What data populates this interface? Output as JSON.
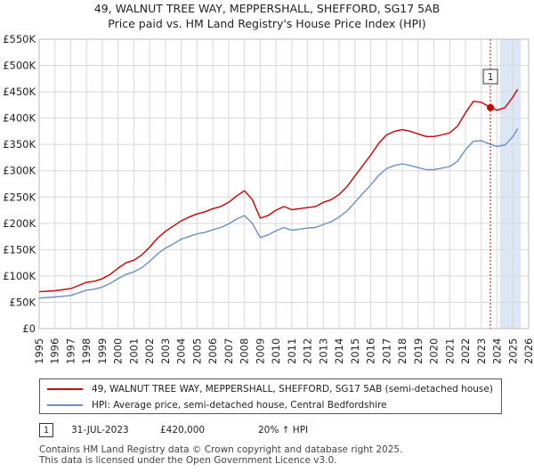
{
  "chart_data": {
    "type": "line",
    "title": "49, WALNUT TREE WAY, MEPPERSHALL, SHEFFORD, SG17 5AB",
    "subtitle": "Price paid vs. HM Land Registry's House Price Index (HPI)",
    "xlim": [
      1995,
      2026
    ],
    "ylim": [
      0,
      550000
    ],
    "x_ticks": [
      "1995",
      "1996",
      "1997",
      "1998",
      "1999",
      "2000",
      "2001",
      "2002",
      "2003",
      "2004",
      "2005",
      "2006",
      "2007",
      "2008",
      "2009",
      "2010",
      "2011",
      "2012",
      "2013",
      "2014",
      "2015",
      "2016",
      "2017",
      "2018",
      "2019",
      "2020",
      "2021",
      "2022",
      "2023",
      "2024",
      "2025",
      "2026"
    ],
    "y_ticks": [
      {
        "value": 0,
        "label": "£0"
      },
      {
        "value": 50000,
        "label": "£50K"
      },
      {
        "value": 100000,
        "label": "£100K"
      },
      {
        "value": 150000,
        "label": "£150K"
      },
      {
        "value": 200000,
        "label": "£200K"
      },
      {
        "value": 250000,
        "label": "£250K"
      },
      {
        "value": 300000,
        "label": "£300K"
      },
      {
        "value": 350000,
        "label": "£350K"
      },
      {
        "value": 400000,
        "label": "£400K"
      },
      {
        "value": 450000,
        "label": "£450K"
      },
      {
        "value": 500000,
        "label": "£500K"
      },
      {
        "value": 550000,
        "label": "£550K"
      }
    ],
    "grid": true,
    "series": [
      {
        "name": "49, WALNUT TREE WAY, MEPPERSHALL, SHEFFORD, SG17 5AB (semi-detached house)",
        "color": "#cc0000",
        "x": [
          1995,
          1996,
          1997,
          1997.5,
          1998,
          1998.5,
          1999,
          1999.5,
          2000,
          2000.5,
          2001,
          2001.5,
          2002,
          2002.5,
          2003,
          2003.5,
          2004,
          2004.5,
          2005,
          2005.5,
          2006,
          2006.5,
          2007,
          2007.5,
          2008,
          2008.5,
          2009,
          2009.5,
          2010,
          2010.5,
          2011,
          2011.5,
          2012,
          2012.5,
          2013,
          2013.5,
          2014,
          2014.5,
          2015,
          2015.5,
          2016,
          2016.5,
          2017,
          2017.5,
          2018,
          2018.5,
          2019,
          2019.5,
          2020,
          2020.5,
          2021,
          2021.5,
          2022,
          2022.5,
          2023,
          2023.58,
          2024,
          2024.5,
          2025,
          2025.3
        ],
        "values": [
          70000,
          72000,
          76000,
          82000,
          88000,
          90000,
          95000,
          103000,
          115000,
          125000,
          130000,
          140000,
          155000,
          172000,
          185000,
          195000,
          205000,
          212000,
          218000,
          222000,
          228000,
          232000,
          240000,
          252000,
          262000,
          245000,
          210000,
          215000,
          225000,
          232000,
          226000,
          228000,
          230000,
          232000,
          240000,
          245000,
          255000,
          270000,
          290000,
          310000,
          330000,
          352000,
          368000,
          375000,
          378000,
          375000,
          370000,
          365000,
          365000,
          368000,
          372000,
          385000,
          410000,
          432000,
          430000,
          420000,
          415000,
          420000,
          440000,
          455000
        ]
      },
      {
        "name": "HPI: Average price, semi-detached house, Central Bedfordshire",
        "color": "#6a8fc8",
        "x": [
          1995,
          1996,
          1997,
          1997.5,
          1998,
          1998.5,
          1999,
          1999.5,
          2000,
          2000.5,
          2001,
          2001.5,
          2002,
          2002.5,
          2003,
          2003.5,
          2004,
          2004.5,
          2005,
          2005.5,
          2006,
          2006.5,
          2007,
          2007.5,
          2008,
          2008.5,
          2009,
          2009.5,
          2010,
          2010.5,
          2011,
          2011.5,
          2012,
          2012.5,
          2013,
          2013.5,
          2014,
          2014.5,
          2015,
          2015.5,
          2016,
          2016.5,
          2017,
          2017.5,
          2018,
          2018.5,
          2019,
          2019.5,
          2020,
          2020.5,
          2021,
          2021.5,
          2022,
          2022.5,
          2023,
          2023.58,
          2024,
          2024.5,
          2025,
          2025.3
        ],
        "values": [
          58000,
          60000,
          63000,
          68000,
          73000,
          75000,
          79000,
          86000,
          95000,
          103000,
          108000,
          116000,
          128000,
          142000,
          153000,
          161000,
          170000,
          175000,
          180000,
          183000,
          188000,
          192000,
          199000,
          208000,
          215000,
          200000,
          173000,
          178000,
          186000,
          192000,
          187000,
          189000,
          191000,
          192000,
          198000,
          203000,
          212000,
          224000,
          240000,
          257000,
          273000,
          291000,
          304000,
          310000,
          313000,
          310000,
          306000,
          302000,
          302000,
          305000,
          308000,
          318000,
          340000,
          356000,
          357000,
          350000,
          346000,
          349000,
          365000,
          380000
        ]
      }
    ],
    "annotations": [
      {
        "label": "1",
        "x": 2023.58,
        "y": 420000
      }
    ],
    "shaded_region": [
      2024.17,
      2025.5
    ],
    "legend_position": "bottom"
  },
  "legend": {
    "red_label": "49, WALNUT TREE WAY, MEPPERSHALL, SHEFFORD, SG17 5AB (semi-detached house)",
    "blue_label": "HPI: Average price, semi-detached house, Central Bedfordshire"
  },
  "sale": {
    "marker": "1",
    "date": "31-JUL-2023",
    "price": "£420,000",
    "change": "20% ↑ HPI"
  },
  "footer": {
    "line1": "Contains HM Land Registry data © Crown copyright and database right 2025.",
    "line2": "This data is licensed under the Open Government Licence v3.0."
  }
}
